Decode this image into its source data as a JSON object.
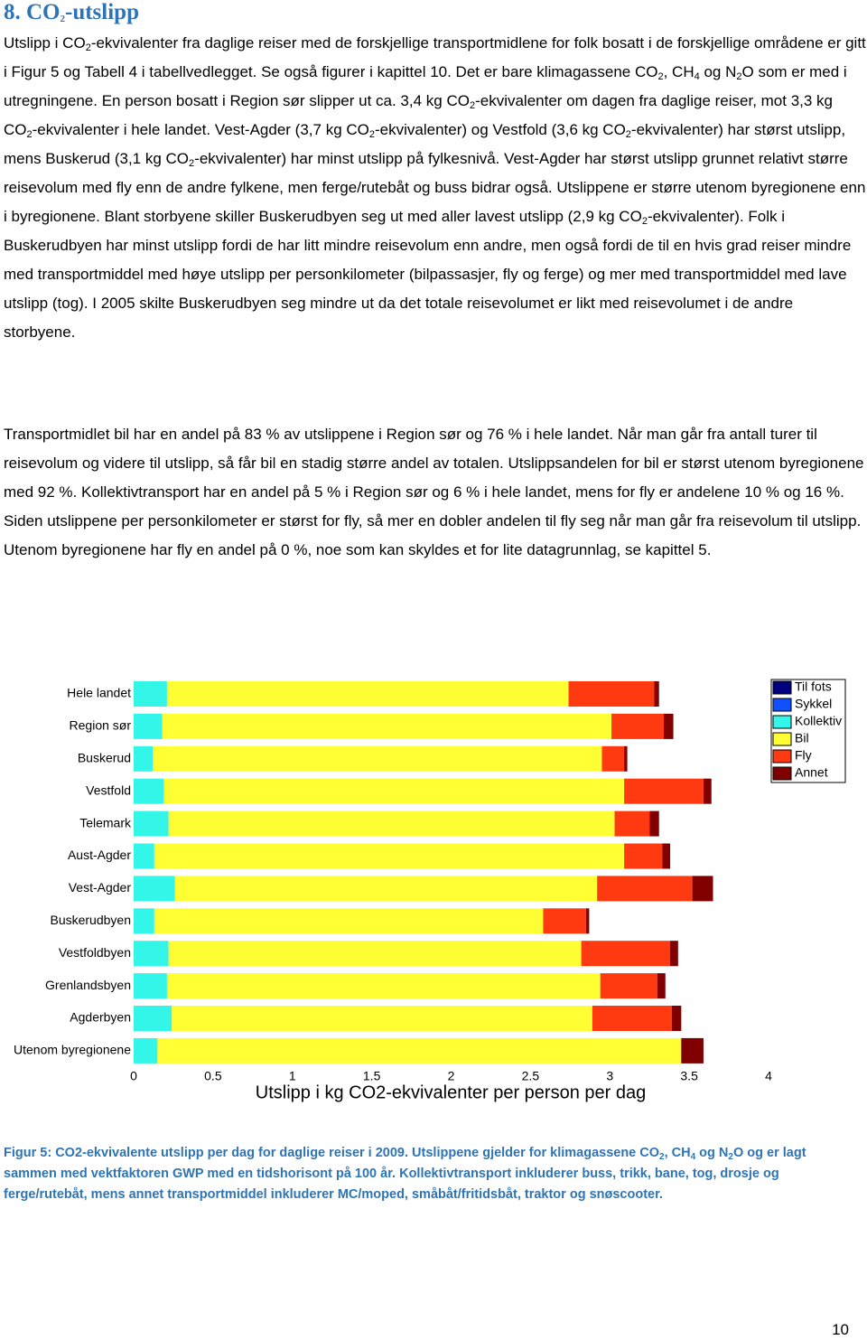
{
  "heading": [
    "8.  CO",
    "2",
    "-utslipp"
  ],
  "paragraphs": [
    [
      "Utslipp i CO",
      "2",
      "-ekvivalenter fra daglige reiser med de forskjellige transportmidlene for folk bosatt i de forskjellige områdene er gitt i Figur 5 og Tabell 4 i tabellvedlegget. Se også figurer i kapittel 10. Det er bare klimagassene CO",
      "2",
      ", CH",
      "4",
      " og N",
      "2",
      "O som er med i utregningene. En person bosatt i Region sør slipper ut ca. 3,4 kg CO",
      "2",
      "-ekvivalenter om dagen fra daglige reiser, mot 3,3 kg CO",
      "2",
      "-ekvivalenter i hele landet. Vest-Agder (3,7 kg CO",
      "2",
      "-ekvivalenter) og Vestfold (3,6 kg CO",
      "2",
      "-ekvivalenter) har størst utslipp, mens Buskerud (3,1 kg CO",
      "2",
      "-ekvivalenter) har minst utslipp på fylkesnivå. Vest-Agder har størst utslipp grunnet relativt større reisevolum med fly enn de andre fylkene, men ferge/rutebåt og buss bidrar også. Utslippene er større utenom byregionene enn i byregionene. Blant storbyene skiller Buskerudbyen seg ut med aller lavest utslipp (2,9 kg CO",
      "2",
      "-ekvivalenter). Folk i Buskerudbyen har minst utslipp fordi de har litt mindre reisevolum enn andre, men også fordi de til en hvis grad reiser mindre med transportmiddel med høye utslipp per personkilometer (bilpassasjer, fly og ferge) og mer med transportmiddel med lave utslipp (tog). I 2005 skilte Buskerudbyen seg mindre ut da det totale reisevolumet er likt med reisevolumet i de andre storbyene."
    ],
    [
      "Transportmidlet bil har en andel på 83 % av utslippene i Region sør og 76 % i hele landet. Når man går fra antall turer til reisevolum og videre til utslipp, så får bil en stadig større andel av totalen. Utslippsandelen for bil er størst utenom byregionene med 92 %. Kollektivtransport har en andel på 5 % i Region sør og 6 % i hele landet, mens for fly er andelene 10 % og 16 %. Siden utslippene per personkilometer er størst for fly, så mer en dobler andelen til fly seg når man går fra reisevolum til utslipp. Utenom byregionene har fly en andel på 0 %, noe som kan skyldes et for lite datagrunnlag, se kapittel 5."
    ]
  ],
  "chart_data": {
    "type": "stacked-barh",
    "xlabel": "Utslipp i kg CO2-ekvivalenter per person per dag",
    "categories": [
      "Hele landet",
      "Region sør",
      "Buskerud",
      "Vestfold",
      "Telemark",
      "Aust-Agder",
      "Vest-Agder",
      "Buskerudbyen",
      "Vestfoldbyen",
      "Grenlandsbyen",
      "Agderbyen",
      "Utenom byregionene"
    ],
    "series": [
      {
        "name": "Til fots",
        "color": "#000080",
        "values": [
          0,
          0,
          0,
          0,
          0,
          0,
          0,
          0,
          0,
          0,
          0,
          0
        ]
      },
      {
        "name": "Sykkel",
        "color": "#1050ff",
        "values": [
          0,
          0,
          0,
          0,
          0,
          0,
          0,
          0,
          0,
          0,
          0,
          0
        ]
      },
      {
        "name": "Kollektiv",
        "color": "#33f5e8",
        "values": [
          0.21,
          0.18,
          0.12,
          0.19,
          0.22,
          0.13,
          0.26,
          0.13,
          0.22,
          0.21,
          0.24,
          0.15
        ]
      },
      {
        "name": "Bil",
        "color": "#ffff33",
        "values": [
          2.53,
          2.83,
          2.83,
          2.9,
          2.81,
          2.96,
          2.66,
          2.45,
          2.6,
          2.73,
          2.65,
          3.3
        ]
      },
      {
        "name": "Fly",
        "color": "#ff3a10",
        "values": [
          0.54,
          0.33,
          0.14,
          0.5,
          0.22,
          0.24,
          0.6,
          0.27,
          0.56,
          0.36,
          0.5,
          0
        ]
      },
      {
        "name": "Annet",
        "color": "#800000",
        "values": [
          0.03,
          0.06,
          0.02,
          0.05,
          0.06,
          0.05,
          0.13,
          0.02,
          0.05,
          0.05,
          0.06,
          0.14
        ]
      }
    ],
    "xlim": [
      0,
      4
    ],
    "xticks": [
      0,
      0.5,
      1,
      1.5,
      2,
      2.5,
      3,
      3.5,
      4
    ]
  },
  "caption": [
    "Figur 5: CO2-ekvivalente utslipp per dag for daglige reiser i 2009. Utslippene gjelder for klimagassene CO",
    "2",
    ", CH",
    "4",
    " og N",
    "2",
    "O og er lagt sammen med vektfaktoren GWP med en tidshorisont på 100 år. Kollektivtransport inkluderer buss, trikk, bane, tog, drosje og ferge/rutebåt, mens annet transportmiddel inkluderer MC/moped, småbåt/fritidsbåt, traktor og snøscooter."
  ],
  "page_number": "10"
}
